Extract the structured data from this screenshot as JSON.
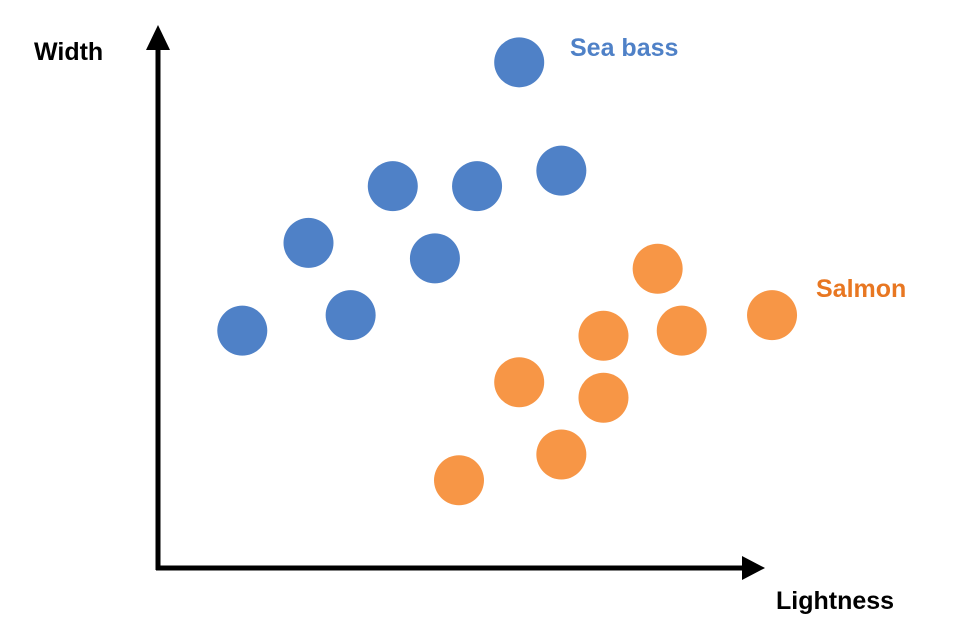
{
  "chart_data": {
    "type": "scatter",
    "xlabel": "Lightness",
    "ylabel": "Width",
    "xlim": [
      0,
      10
    ],
    "ylim": [
      0,
      10
    ],
    "grid": false,
    "series": [
      {
        "name": "Sea bass",
        "color": "#4f81c7",
        "points": [
          {
            "x": 1.4,
            "y": 4.6
          },
          {
            "x": 2.5,
            "y": 6.3
          },
          {
            "x": 3.2,
            "y": 4.9
          },
          {
            "x": 3.9,
            "y": 7.4
          },
          {
            "x": 4.6,
            "y": 6.0
          },
          {
            "x": 5.3,
            "y": 7.4
          },
          {
            "x": 6.0,
            "y": 9.8
          },
          {
            "x": 6.7,
            "y": 7.7
          }
        ]
      },
      {
        "name": "Salmon",
        "color": "#f79646",
        "points": [
          {
            "x": 5.0,
            "y": 1.7
          },
          {
            "x": 6.0,
            "y": 3.6
          },
          {
            "x": 6.7,
            "y": 2.2
          },
          {
            "x": 7.4,
            "y": 4.5
          },
          {
            "x": 7.4,
            "y": 3.3
          },
          {
            "x": 8.3,
            "y": 5.8
          },
          {
            "x": 8.7,
            "y": 4.6
          },
          {
            "x": 10.2,
            "y": 4.9
          }
        ]
      }
    ]
  }
}
